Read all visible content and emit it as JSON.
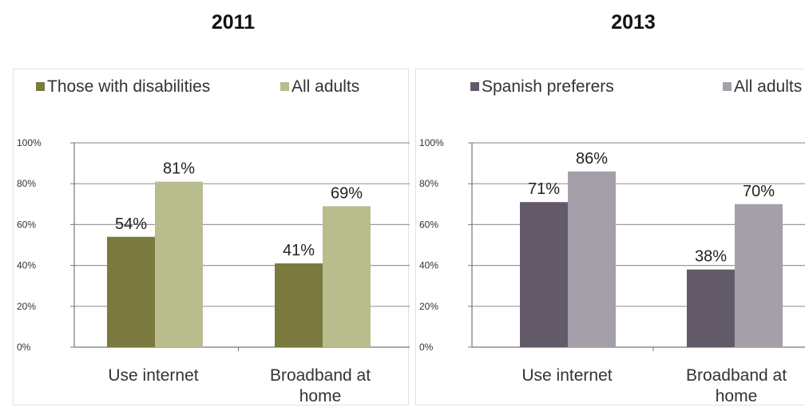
{
  "headers": [
    "2011",
    "2013"
  ],
  "chart_data": [
    {
      "type": "bar",
      "title": "2011",
      "categories": [
        [
          "Use internet"
        ],
        [
          "Broadband at",
          "home"
        ]
      ],
      "series": [
        {
          "name": "Those with disabilities",
          "values": [
            54,
            41
          ],
          "color": "#7a7a3e"
        },
        {
          "name": "All adults",
          "values": [
            81,
            69
          ],
          "color": "#b9bd8e"
        }
      ],
      "data_labels": [
        [
          "54%",
          "41%"
        ],
        [
          "81%",
          "69%"
        ]
      ],
      "ylim": [
        0,
        100
      ],
      "yticks": [
        "0%",
        "20%",
        "40%",
        "60%",
        "80%",
        "100%"
      ],
      "grid": true,
      "legend": "top"
    },
    {
      "type": "bar",
      "title": "2013",
      "categories": [
        [
          "Use internet"
        ],
        [
          "Broadband at",
          "home"
        ]
      ],
      "series": [
        {
          "name": "Spanish preferers",
          "values": [
            71,
            38
          ],
          "color": "#625a69"
        },
        {
          "name": "All adults",
          "values": [
            86,
            70
          ],
          "color": "#a49fa8"
        }
      ],
      "data_labels": [
        [
          "71%",
          "38%"
        ],
        [
          "86%",
          "70%"
        ]
      ],
      "ylim": [
        0,
        100
      ],
      "yticks": [
        "0%",
        "20%",
        "40%",
        "60%",
        "80%",
        "100%"
      ],
      "grid": true,
      "legend": "top"
    }
  ]
}
